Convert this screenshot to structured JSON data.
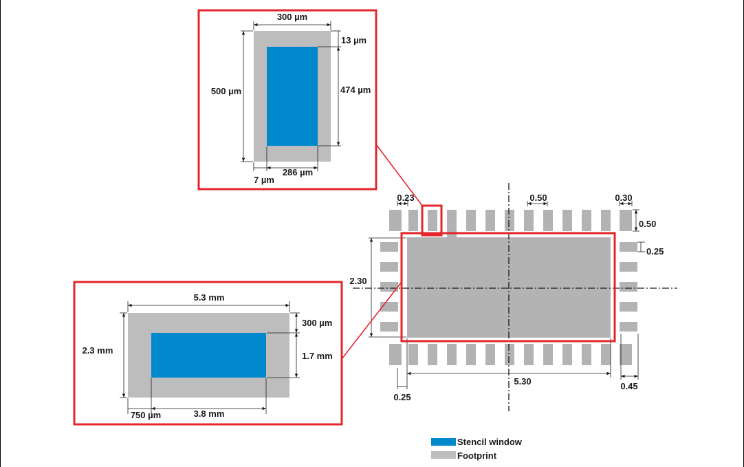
{
  "colors": {
    "stencil": "#0088cc",
    "footprint": "#bdbdbd",
    "pad": "#b3b3b3",
    "callout": "#e3262b"
  },
  "top_detail": {
    "width": "300 µm",
    "height": "500 µm",
    "top_gap": "13 µm",
    "window_height": "474 µm",
    "left_gap": "7 µm",
    "window_width": "286 µm"
  },
  "bottom_detail": {
    "width": "5.3 mm",
    "height": "2.3 mm",
    "top_gap": "300 µm",
    "window_height": "1.7 mm",
    "left_gap": "750 µm",
    "window_width": "3.8 mm"
  },
  "package": {
    "pad_width": "0.23",
    "pitch": "0.50",
    "corner_pad": "0.30",
    "pad_length": "0.50",
    "side_pad": "0.25",
    "body_height": "2.30",
    "body_width": "5.30",
    "left_offset": "0.25",
    "right_offset": "0.45"
  },
  "legend": {
    "stencil": "Stencil window",
    "footprint": "Footprint"
  }
}
